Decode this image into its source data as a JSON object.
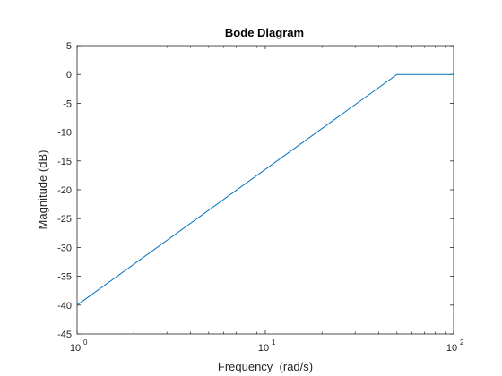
{
  "chart_data": {
    "type": "line",
    "title": "Bode Diagram",
    "xlabel": "Frequency  (rad/s)",
    "ylabel": "Magnitude (dB)",
    "xscale": "log",
    "xlim": [
      1,
      100
    ],
    "ylim": [
      -45,
      5
    ],
    "yticks": [
      5,
      0,
      -5,
      -10,
      -15,
      -20,
      -25,
      -30,
      -35,
      -40,
      -45
    ],
    "xticks": [
      {
        "value": 1,
        "base": "10",
        "exp": "0"
      },
      {
        "value": 10,
        "base": "10",
        "exp": "1"
      },
      {
        "value": 100,
        "base": "10",
        "exp": "2"
      }
    ],
    "grid": false,
    "series": [
      {
        "color": "#0072BD",
        "x": [
          1,
          50,
          100
        ],
        "y": [
          -40,
          0,
          0
        ]
      }
    ]
  }
}
